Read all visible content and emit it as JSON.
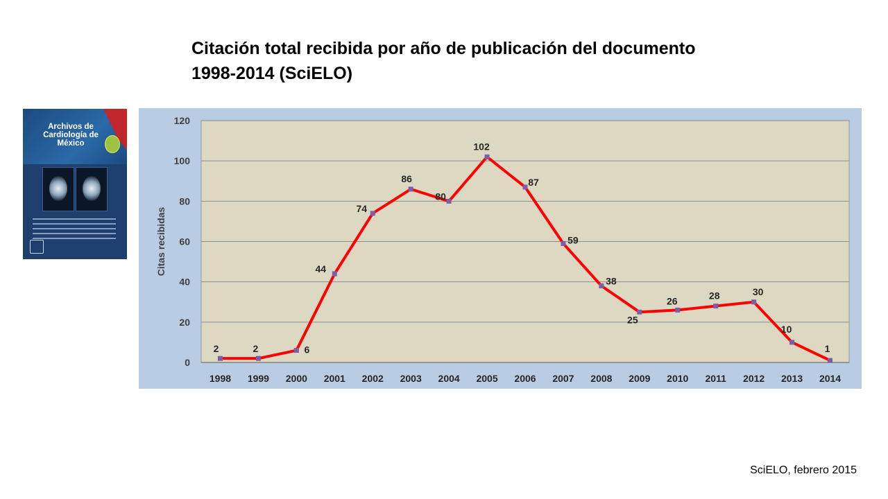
{
  "slide": {
    "title_line1": "Citación total recibida por año de publicación del documento",
    "title_line2": "1998-2014 (SciELO)",
    "source": "SciELO, febrero 2015"
  },
  "cover": {
    "journal_name": "Archivos de Cardiología de México"
  },
  "colors": {
    "chart_background": "#b8cce4",
    "plot_area": "#ddd8c2",
    "line": "#ff0000",
    "marker": "#7b5ea7",
    "gridline": "#8c8c8c"
  },
  "chart_data": {
    "type": "line",
    "title": "",
    "xlabel": "",
    "ylabel": "Citas recibidas",
    "categories": [
      "1998",
      "1999",
      "2000",
      "2001",
      "2002",
      "2003",
      "2004",
      "2005",
      "2006",
      "2007",
      "2008",
      "2009",
      "2010",
      "2011",
      "2012",
      "2013",
      "2014"
    ],
    "series": [
      {
        "values": [
          2,
          2,
          6,
          44,
          74,
          86,
          80,
          102,
          87,
          59,
          38,
          25,
          26,
          28,
          30,
          10,
          1
        ]
      }
    ],
    "ylim": [
      0,
      120
    ],
    "yticks": [
      0,
      20,
      40,
      60,
      80,
      100,
      120
    ],
    "grid": true,
    "data_labels": true,
    "legend": "none"
  }
}
